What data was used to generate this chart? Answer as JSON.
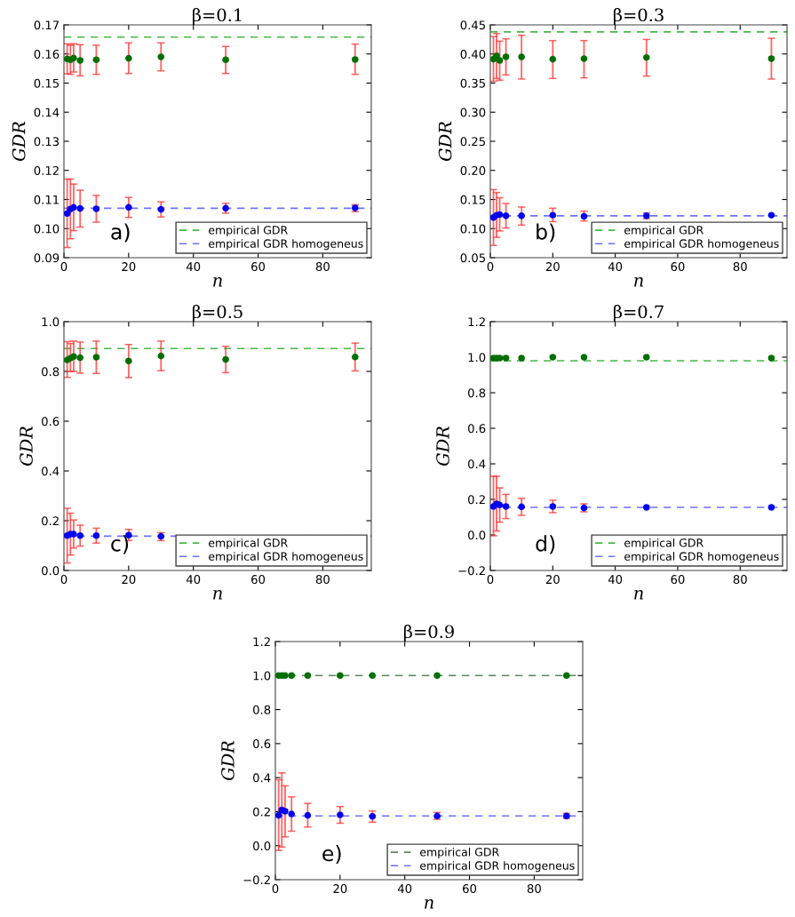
{
  "chart_data": [
    {
      "type": "scatter",
      "title": "β=0.1",
      "xlabel": "n",
      "ylabel": "GDR",
      "marker": "circle",
      "grid": false,
      "legend": "bottom right",
      "x": [
        1,
        2,
        3,
        5,
        10,
        20,
        30,
        50,
        90
      ],
      "xlim": [
        0,
        95
      ],
      "xticks": [
        0,
        20,
        40,
        60,
        80
      ],
      "ylim": [
        0.09,
        0.17
      ],
      "yticks": [
        {
          "value": 0.09,
          "label": "0.09"
        },
        {
          "value": 0.1,
          "label": "0.10"
        },
        {
          "value": 0.11,
          "label": "0.11"
        },
        {
          "value": 0.12,
          "label": "0.12"
        },
        {
          "value": 0.13,
          "label": "0.13"
        },
        {
          "value": 0.14,
          "label": "0.14"
        },
        {
          "value": 0.15,
          "label": "0.15"
        },
        {
          "value": 0.16,
          "label": "0.16"
        },
        {
          "value": 0.17,
          "label": "0.17"
        }
      ],
      "series": [
        {
          "color": "#006e00",
          "values": [
            0.1583,
            0.158,
            0.1586,
            0.1578,
            0.158,
            0.1585,
            0.159,
            0.158,
            0.1581
          ],
          "errors": [
            [
              0.1532,
              0.1635
            ],
            [
              0.153,
              0.163
            ],
            [
              0.1538,
              0.1635
            ],
            [
              0.1525,
              0.1632
            ],
            [
              0.153,
              0.163
            ],
            [
              0.1533,
              0.1638
            ],
            [
              0.1542,
              0.1638
            ],
            [
              0.1533,
              0.1626
            ],
            [
              0.153,
              0.1634
            ]
          ]
        },
        {
          "color": "#0000f0",
          "values": [
            0.1052,
            0.1067,
            0.1073,
            0.1069,
            0.1068,
            0.1073,
            0.1066,
            0.107,
            0.1071
          ],
          "errors": [
            [
              0.0935,
              0.117
            ],
            [
              0.0965,
              0.117
            ],
            [
              0.0993,
              0.1153
            ],
            [
              0.1005,
              0.1132
            ],
            [
              0.1022,
              0.1114
            ],
            [
              0.1038,
              0.1107
            ],
            [
              0.104,
              0.1092
            ],
            [
              0.1053,
              0.1087
            ],
            [
              0.1058,
              0.1082
            ]
          ]
        }
      ],
      "ref_lines": [
        {
          "axis": "y",
          "value": 0.1658,
          "label": "empirical GDR",
          "color": "#44bb44",
          "line_style": "dashed"
        },
        {
          "axis": "y",
          "value": 0.107,
          "label": "empirical GDR homogeneus",
          "color": "#7070ff",
          "line_style": "dashed"
        }
      ],
      "annotations": [
        "a)"
      ]
    },
    {
      "type": "scatter",
      "title": "β=0.3",
      "xlabel": "n",
      "ylabel": "GDR",
      "marker": "circle",
      "grid": false,
      "legend": "bottom right",
      "x": [
        1,
        2,
        3,
        5,
        10,
        20,
        30,
        50,
        90
      ],
      "xlim": [
        0,
        95
      ],
      "xticks": [
        0,
        20,
        40,
        60,
        80
      ],
      "ylim": [
        0.05,
        0.45
      ],
      "yticks": [
        {
          "value": 0.05,
          "label": "0.05"
        },
        {
          "value": 0.1,
          "label": "0.10"
        },
        {
          "value": 0.15,
          "label": "0.15"
        },
        {
          "value": 0.2,
          "label": "0.20"
        },
        {
          "value": 0.25,
          "label": "0.25"
        },
        {
          "value": 0.3,
          "label": "0.30"
        },
        {
          "value": 0.35,
          "label": "0.35"
        },
        {
          "value": 0.4,
          "label": "0.40"
        },
        {
          "value": 0.45,
          "label": "0.45"
        }
      ],
      "series": [
        {
          "color": "#006e00",
          "values": [
            0.391,
            0.397,
            0.389,
            0.395,
            0.395,
            0.391,
            0.392,
            0.394,
            0.392
          ],
          "errors": [
            [
              0.353,
              0.43
            ],
            [
              0.358,
              0.435
            ],
            [
              0.355,
              0.422
            ],
            [
              0.364,
              0.426
            ],
            [
              0.357,
              0.432
            ],
            [
              0.358,
              0.423
            ],
            [
              0.359,
              0.423
            ],
            [
              0.362,
              0.425
            ],
            [
              0.357,
              0.427
            ]
          ]
        },
        {
          "color": "#0000f0",
          "values": [
            0.119,
            0.123,
            0.124,
            0.122,
            0.122,
            0.123,
            0.121,
            0.122,
            0.123
          ],
          "errors": [
            [
              0.071,
              0.167
            ],
            [
              0.085,
              0.162
            ],
            [
              0.096,
              0.153
            ],
            [
              0.101,
              0.143
            ],
            [
              0.106,
              0.137
            ],
            [
              0.112,
              0.135
            ],
            [
              0.113,
              0.13
            ],
            [
              0.117,
              0.127
            ],
            null
          ]
        }
      ],
      "ref_lines": [
        {
          "axis": "y",
          "value": 0.438,
          "label": "empirical GDR",
          "color": "#44bb44",
          "line_style": "dashed"
        },
        {
          "axis": "y",
          "value": 0.122,
          "label": "empirical GDR homogeneus",
          "color": "#7070ff",
          "line_style": "dashed"
        }
      ],
      "annotations": [
        "b)"
      ]
    },
    {
      "type": "scatter",
      "title": "β=0.5",
      "xlabel": "n",
      "ylabel": "GDR",
      "marker": "circle",
      "grid": false,
      "legend": "bottom right",
      "x": [
        1,
        2,
        3,
        5,
        10,
        20,
        30,
        50,
        90
      ],
      "xlim": [
        0,
        95
      ],
      "xticks": [
        0,
        20,
        40,
        60,
        80
      ],
      "ylim": [
        0,
        1
      ],
      "yticks": [
        {
          "value": 0,
          "label": "0.0"
        },
        {
          "value": 0.2,
          "label": "0.2"
        },
        {
          "value": 0.4,
          "label": "0.4"
        },
        {
          "value": 0.6,
          "label": "0.6"
        },
        {
          "value": 0.8,
          "label": "0.8"
        },
        {
          "value": 1,
          "label": "1.0"
        }
      ],
      "series": [
        {
          "color": "#006e00",
          "values": [
            0.846,
            0.853,
            0.86,
            0.855,
            0.857,
            0.842,
            0.862,
            0.848,
            0.858
          ],
          "errors": [
            [
              0.776,
              0.92
            ],
            [
              0.8,
              0.912
            ],
            [
              0.8,
              0.922
            ],
            [
              0.793,
              0.918
            ],
            [
              0.792,
              0.922
            ],
            [
              0.775,
              0.908
            ],
            [
              0.803,
              0.922
            ],
            [
              0.795,
              0.901
            ],
            [
              0.802,
              0.914
            ]
          ]
        },
        {
          "color": "#0000f0",
          "values": [
            0.14,
            0.146,
            0.146,
            0.14,
            0.14,
            0.142,
            0.137,
            null,
            null
          ],
          "errors": [
            [
              0.03,
              0.25
            ],
            [
              0.062,
              0.23
            ],
            [
              0.09,
              0.203
            ],
            [
              0.098,
              0.182
            ],
            [
              0.11,
              0.17
            ],
            [
              0.12,
              0.165
            ],
            [
              0.12,
              0.152
            ],
            null,
            null
          ]
        }
      ],
      "ref_lines": [
        {
          "axis": "y",
          "value": 0.892,
          "label": "empirical GDR",
          "color": "#44bb44",
          "line_style": "dashed"
        },
        {
          "axis": "y",
          "value": 0.138,
          "label": "empirical GDR homogeneus",
          "color": "#7070ff",
          "line_style": "dashed"
        }
      ],
      "annotations": [
        "c)"
      ]
    },
    {
      "type": "scatter",
      "title": "β=0.7",
      "xlabel": "n",
      "ylabel": "GDR",
      "marker": "circle",
      "grid": false,
      "legend": "bottom right",
      "x": [
        1,
        2,
        3,
        5,
        10,
        20,
        30,
        50,
        90
      ],
      "xlim": [
        0,
        95
      ],
      "xticks": [
        0,
        20,
        40,
        60,
        80
      ],
      "ylim": [
        -0.2,
        1.2
      ],
      "yticks": [
        {
          "value": -0.2,
          "label": "−0.2"
        },
        {
          "value": 0,
          "label": "0.0"
        },
        {
          "value": 0.2,
          "label": "0.2"
        },
        {
          "value": 0.4,
          "label": "0.4"
        },
        {
          "value": 0.6,
          "label": "0.6"
        },
        {
          "value": 0.8,
          "label": "0.8"
        },
        {
          "value": 1,
          "label": "1.0"
        },
        {
          "value": 1.2,
          "label": "1.2"
        }
      ],
      "series": [
        {
          "color": "#006e00",
          "values": [
            0.995,
            0.995,
            0.995,
            0.995,
            0.995,
            1.0,
            1.0,
            1.0,
            0.995
          ]
        },
        {
          "color": "#0000f0",
          "values": [
            0.16,
            0.175,
            0.168,
            0.16,
            0.158,
            0.16,
            0.152,
            0.155,
            0.155
          ],
          "errors": [
            [
              -0.005,
              0.33
            ],
            [
              0.022,
              0.33
            ],
            [
              0.072,
              0.265
            ],
            [
              0.092,
              0.228
            ],
            [
              0.11,
              0.205
            ],
            [
              0.125,
              0.195
            ],
            [
              0.13,
              0.175
            ],
            null,
            null
          ]
        }
      ],
      "ref_lines": [
        {
          "axis": "y",
          "value": 0.98,
          "label": "empirical GDR",
          "color": "#44bb44",
          "line_style": "dashed"
        },
        {
          "axis": "y",
          "value": 0.155,
          "label": "empirical GDR homogeneus",
          "color": "#7070ff",
          "line_style": "dashed"
        }
      ],
      "annotations": [
        "d)"
      ]
    },
    {
      "type": "scatter",
      "title": "β=0.9",
      "xlabel": "n",
      "ylabel": "GDR",
      "marker": "circle",
      "grid": false,
      "legend": "bottom right",
      "x": [
        1,
        2,
        3,
        5,
        10,
        20,
        30,
        50,
        90
      ],
      "xlim": [
        0,
        95
      ],
      "xticks": [
        0,
        20,
        40,
        60,
        80
      ],
      "ylim": [
        -0.2,
        1.2
      ],
      "yticks": [
        {
          "value": -0.2,
          "label": "−0.2"
        },
        {
          "value": 0,
          "label": "0.0"
        },
        {
          "value": 0.2,
          "label": "0.2"
        },
        {
          "value": 0.4,
          "label": "0.4"
        },
        {
          "value": 0.6,
          "label": "0.6"
        },
        {
          "value": 0.8,
          "label": "0.8"
        },
        {
          "value": 1,
          "label": "1.0"
        },
        {
          "value": 1.2,
          "label": "1.2"
        }
      ],
      "series": [
        {
          "color": "#006e00",
          "values": [
            1.0,
            1.0,
            1.0,
            1.0,
            1.0,
            1.0,
            1.0,
            1.0,
            1.0
          ]
        },
        {
          "color": "#0000f0",
          "values": [
            0.178,
            0.21,
            0.202,
            0.186,
            0.178,
            0.181,
            0.172,
            0.174,
            0.174
          ],
          "errors": [
            [
              -0.028,
              0.388
            ],
            [
              -0.008,
              0.428
            ],
            [
              0.052,
              0.352
            ],
            [
              0.085,
              0.287
            ],
            [
              0.11,
              0.248
            ],
            [
              0.132,
              0.23
            ],
            [
              0.138,
              0.204
            ],
            [
              0.155,
              0.195
            ],
            [
              0.16,
              0.19
            ]
          ]
        }
      ],
      "ref_lines": [
        {
          "axis": "y",
          "value": 1.0,
          "label": "empirical GDR",
          "color": "#5a8a5a",
          "line_style": "dashed"
        },
        {
          "axis": "y",
          "value": 0.175,
          "label": "empirical GDR homogeneus",
          "color": "#7070ff",
          "line_style": "dashed"
        }
      ],
      "annotations": [
        "e)"
      ]
    }
  ]
}
